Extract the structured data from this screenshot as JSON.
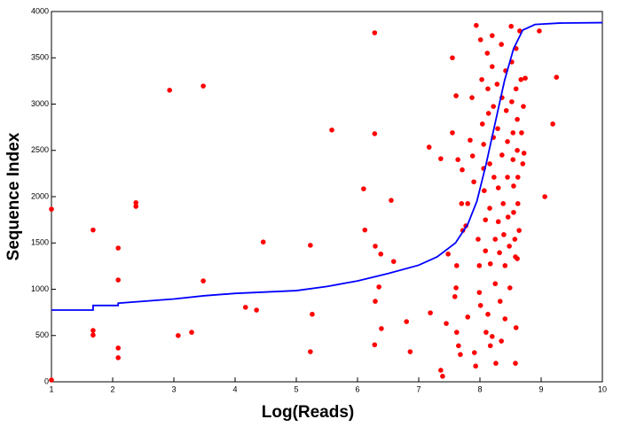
{
  "chart_data": {
    "type": "scatter",
    "xlabel": "Log(Reads)",
    "ylabel": "Sequence Index",
    "xlim": [
      1,
      10
    ],
    "ylim": [
      0,
      4000
    ],
    "xticks": [
      1,
      2,
      3,
      4,
      5,
      6,
      7,
      8,
      9,
      10
    ],
    "yticks": [
      0,
      500,
      1000,
      1500,
      2000,
      2500,
      3000,
      3500,
      4000
    ],
    "series": [
      {
        "type": "scatter",
        "color": "#ff0000",
        "x": [
          1.0,
          1.0,
          1.68,
          1.68,
          1.68,
          2.09,
          2.09,
          2.09,
          2.09,
          2.38,
          2.38,
          2.93,
          3.07,
          3.29,
          3.48,
          3.48,
          4.17,
          4.35,
          4.46,
          5.23,
          5.26,
          5.23,
          5.58,
          6.1,
          6.12,
          6.28,
          6.28,
          6.29,
          6.29,
          6.28,
          6.35,
          6.38,
          6.39,
          6.55,
          6.59,
          6.8,
          6.86,
          7.17,
          7.19,
          7.36,
          7.36,
          7.39,
          7.45,
          7.48,
          7.55,
          7.61,
          7.55,
          7.64,
          7.71,
          7.7,
          7.62,
          7.61,
          7.59,
          7.62,
          7.65,
          7.68,
          7.72,
          7.8,
          7.77,
          7.8,
          7.84,
          7.87,
          7.88,
          7.9,
          7.91,
          7.93,
          7.94,
          7.97,
          7.99,
          7.99,
          8.01,
          8.01,
          8.03,
          8.04,
          8.06,
          8.06,
          8.07,
          8.09,
          8.09,
          8.1,
          8.12,
          8.13,
          8.14,
          8.16,
          8.16,
          8.17,
          8.17,
          8.2,
          8.2,
          8.22,
          8.22,
          8.23,
          8.25,
          8.25,
          8.26,
          8.28,
          8.29,
          8.3,
          8.3,
          8.32,
          8.33,
          8.35,
          8.36,
          8.36,
          8.38,
          8.39,
          8.41,
          8.41,
          8.42,
          8.43,
          8.45,
          8.45,
          8.46,
          8.48,
          8.49,
          8.51,
          8.52,
          8.52,
          8.54,
          8.54,
          8.55,
          8.55,
          8.57,
          8.58,
          8.59,
          8.59,
          8.61,
          8.61,
          8.62,
          8.62,
          8.64,
          8.65,
          8.67,
          8.68,
          8.7,
          8.71,
          8.72,
          8.74,
          8.58,
          8.59,
          8.61,
          8.97,
          9.06,
          9.19,
          9.25,
          8.35,
          8.2,
          8.13
        ],
        "values": [
          1865,
          20,
          1640,
          555,
          505,
          1445,
          1100,
          365,
          260,
          1935,
          1895,
          3150,
          500,
          535,
          3195,
          1090,
          805,
          775,
          1510,
          1475,
          730,
          325,
          2720,
          2085,
          1640,
          3770,
          2680,
          1465,
          870,
          400,
          1025,
          1380,
          575,
          1960,
          1300,
          650,
          325,
          2535,
          745,
          2410,
          125,
          60,
          630,
          1380,
          3500,
          3090,
          2690,
          2400,
          2290,
          1925,
          1255,
          1015,
          920,
          535,
          390,
          295,
          1635,
          1925,
          1685,
          700,
          2610,
          3070,
          2440,
          2160,
          315,
          170,
          3850,
          1540,
          1255,
          965,
          825,
          3695,
          3265,
          2785,
          2565,
          2305,
          2065,
          1750,
          1415,
          535,
          3550,
          3165,
          2900,
          2355,
          1875,
          1275,
          390,
          3740,
          3405,
          2975,
          2640,
          2210,
          1540,
          1060,
          200,
          3215,
          2735,
          2095,
          1730,
          1395,
          870,
          3645,
          3070,
          2450,
          1925,
          1590,
          1255,
          680,
          3360,
          2930,
          2595,
          2210,
          1780,
          1465,
          1015,
          3840,
          3455,
          3025,
          2690,
          2400,
          2115,
          1830,
          1540,
          1350,
          3600,
          3165,
          2835,
          2500,
          2210,
          1925,
          1635,
          3790,
          3265,
          2690,
          2355,
          2975,
          2470,
          3280,
          200,
          585,
          1330,
          3790,
          2000,
          2785,
          3290,
          440,
          490,
          730
        ]
      },
      {
        "type": "line",
        "color": "#0000ff",
        "x": [
          1,
          1.68,
          1.68,
          2.09,
          2.09,
          3,
          3.5,
          4,
          5,
          5.5,
          6,
          6.5,
          7,
          7.3,
          7.6,
          7.8,
          7.95,
          8.1,
          8.25,
          8.4,
          8.55,
          8.7,
          8.9,
          9.3,
          10
        ],
        "values": [
          775,
          775,
          825,
          825,
          850,
          895,
          930,
          955,
          985,
          1030,
          1090,
          1170,
          1260,
          1350,
          1500,
          1700,
          1950,
          2350,
          2800,
          3250,
          3600,
          3800,
          3860,
          3875,
          3880
        ]
      }
    ]
  }
}
